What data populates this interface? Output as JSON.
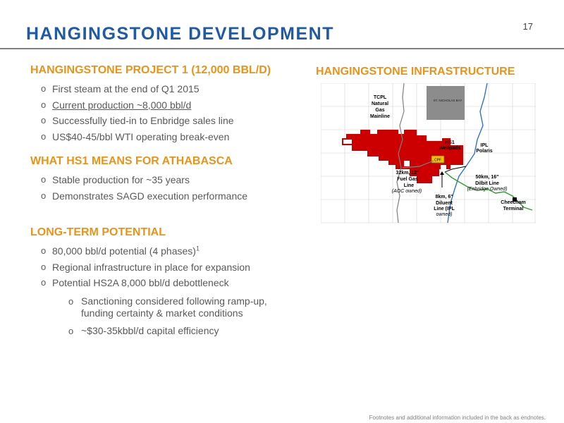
{
  "page_number": "17",
  "title": "HANGINGSTONE DEVELOPMENT",
  "sections": [
    {
      "heading": "HANGINGSTONE PROJECT 1 (12,000 BBL/D)",
      "bullets": [
        "First steam at the end of Q1 2015",
        "Current production ~8,000 bbl/d",
        "Successfully tied-in to Enbridge sales line",
        "US$40-45/bbl WTI operating break-even"
      ]
    },
    {
      "heading": "WHAT HS1 MEANS FOR ATHABASCA",
      "bullets": [
        "Stable production for ~35 years",
        "Demonstrates SAGD execution performance"
      ]
    },
    {
      "heading": "LONG-TERM POTENTIAL",
      "bullets": [
        "80,000 bbl/d potential (4 phases)",
        "Regional infrastructure in place for expansion",
        "Potential HS2A 8,000 bbl/d debottleneck"
      ],
      "footnote_ref": "1",
      "sub_bullets": [
        "Sanctioning considered following ramp-up, funding certainty & market conditions",
        "~$30-35kbbl/d capital efficiency"
      ]
    }
  ],
  "infrastructure": {
    "heading": "HANGINGSTONE INFRASTRUCTURE",
    "labels": {
      "tcpl": [
        "TCPL",
        "Natural",
        "Gas",
        "Mainline"
      ],
      "hs1": [
        "HS1",
        "Wellpads"
      ],
      "ipl": [
        "IPL",
        "Polaris"
      ],
      "fuel_gas": [
        "32km, 12\"",
        "Fuel Gas",
        "Line"
      ],
      "fuel_gas_owner": "(AOC owned)",
      "dilbit": [
        "50km, 16\"",
        "Dilbit Line"
      ],
      "dilbit_owner": "(Enbridge Owned)",
      "diluent": [
        "8km, 6\"",
        "Diluent"
      ],
      "diluent_owner_a": "Line (IPL",
      "diluent_owner_b": "owned)",
      "cheecham": [
        "Cheecham",
        "Terminal"
      ],
      "grey_block": "ST. NICHOLAS BAY",
      "facility": "CPF"
    },
    "colors": {
      "lease": "#cc0000",
      "other_lease": "#8c8c8c",
      "fuel_gas_line": "#7f7f7f",
      "ipl_line": "#2e75c9",
      "dilbit_line": "#2e9e2e"
    }
  },
  "footer": "Footnotes and additional information included in the back as endnotes."
}
